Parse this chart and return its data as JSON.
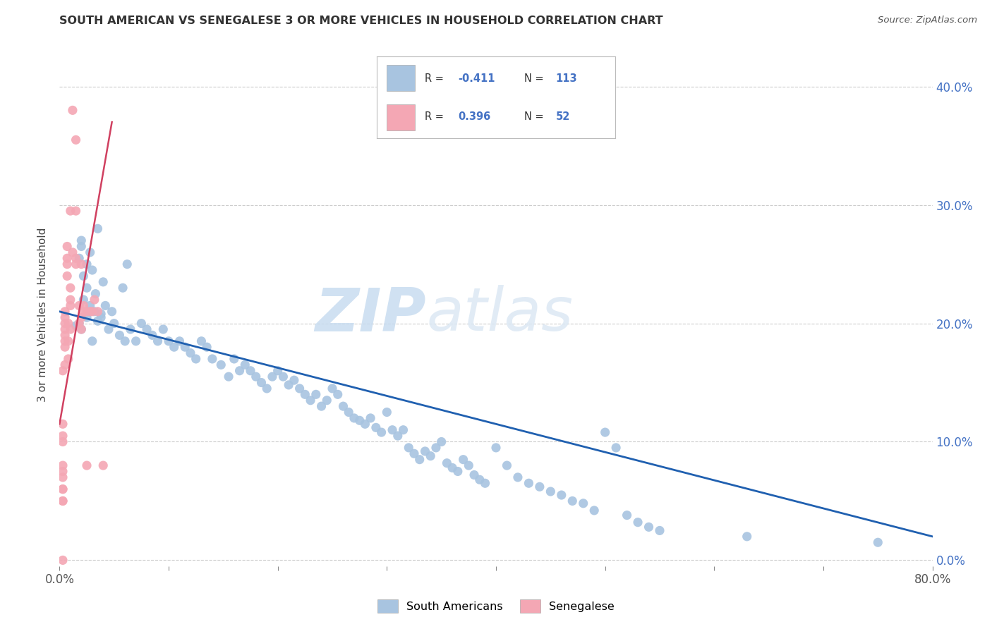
{
  "title": "SOUTH AMERICAN VS SENEGALESE 3 OR MORE VEHICLES IN HOUSEHOLD CORRELATION CHART",
  "source": "Source: ZipAtlas.com",
  "ylabel": "3 or more Vehicles in Household",
  "xlim": [
    0.0,
    0.8
  ],
  "ylim": [
    -0.005,
    0.42
  ],
  "watermark_zip": "ZIP",
  "watermark_atlas": "atlas",
  "legend_labels": [
    "South Americans",
    "Senegalese"
  ],
  "blue_color": "#a8c4e0",
  "pink_color": "#f4a7b4",
  "trendline_blue": "#2060b0",
  "trendline_pink": "#d04060",
  "blue_trendline_x": [
    0.0,
    0.8
  ],
  "blue_trendline_y": [
    0.21,
    0.02
  ],
  "pink_trendline_x": [
    0.0,
    0.048
  ],
  "pink_trendline_y": [
    0.115,
    0.37
  ],
  "sa_x": [
    0.022,
    0.018,
    0.02,
    0.025,
    0.03,
    0.028,
    0.032,
    0.015,
    0.035,
    0.038,
    0.02,
    0.025,
    0.022,
    0.018,
    0.04,
    0.033,
    0.028,
    0.02,
    0.025,
    0.03,
    0.042,
    0.038,
    0.035,
    0.045,
    0.05,
    0.055,
    0.06,
    0.048,
    0.065,
    0.07,
    0.062,
    0.058,
    0.075,
    0.08,
    0.085,
    0.09,
    0.095,
    0.1,
    0.105,
    0.11,
    0.115,
    0.12,
    0.125,
    0.13,
    0.135,
    0.14,
    0.148,
    0.155,
    0.16,
    0.165,
    0.17,
    0.175,
    0.18,
    0.185,
    0.19,
    0.195,
    0.2,
    0.205,
    0.21,
    0.215,
    0.22,
    0.225,
    0.23,
    0.235,
    0.24,
    0.245,
    0.25,
    0.255,
    0.26,
    0.265,
    0.27,
    0.275,
    0.28,
    0.285,
    0.29,
    0.295,
    0.3,
    0.305,
    0.31,
    0.315,
    0.32,
    0.325,
    0.33,
    0.335,
    0.34,
    0.345,
    0.35,
    0.355,
    0.36,
    0.365,
    0.37,
    0.375,
    0.38,
    0.385,
    0.39,
    0.4,
    0.41,
    0.42,
    0.43,
    0.44,
    0.45,
    0.46,
    0.47,
    0.48,
    0.49,
    0.5,
    0.51,
    0.52,
    0.53,
    0.54,
    0.55,
    0.63,
    0.75
  ],
  "sa_y": [
    0.22,
    0.2,
    0.195,
    0.205,
    0.185,
    0.215,
    0.21,
    0.198,
    0.202,
    0.208,
    0.265,
    0.25,
    0.24,
    0.255,
    0.235,
    0.225,
    0.26,
    0.27,
    0.23,
    0.245,
    0.215,
    0.205,
    0.28,
    0.195,
    0.2,
    0.19,
    0.185,
    0.21,
    0.195,
    0.185,
    0.25,
    0.23,
    0.2,
    0.195,
    0.19,
    0.185,
    0.195,
    0.185,
    0.18,
    0.185,
    0.18,
    0.175,
    0.17,
    0.185,
    0.18,
    0.17,
    0.165,
    0.155,
    0.17,
    0.16,
    0.165,
    0.16,
    0.155,
    0.15,
    0.145,
    0.155,
    0.16,
    0.155,
    0.148,
    0.152,
    0.145,
    0.14,
    0.135,
    0.14,
    0.13,
    0.135,
    0.145,
    0.14,
    0.13,
    0.125,
    0.12,
    0.118,
    0.115,
    0.12,
    0.112,
    0.108,
    0.125,
    0.11,
    0.105,
    0.11,
    0.095,
    0.09,
    0.085,
    0.092,
    0.088,
    0.095,
    0.1,
    0.082,
    0.078,
    0.075,
    0.085,
    0.08,
    0.072,
    0.068,
    0.065,
    0.095,
    0.08,
    0.07,
    0.065,
    0.062,
    0.058,
    0.055,
    0.05,
    0.048,
    0.042,
    0.108,
    0.095,
    0.038,
    0.032,
    0.028,
    0.025,
    0.02,
    0.015
  ],
  "sen_x": [
    0.003,
    0.003,
    0.003,
    0.003,
    0.003,
    0.003,
    0.003,
    0.003,
    0.003,
    0.003,
    0.003,
    0.003,
    0.005,
    0.005,
    0.005,
    0.005,
    0.005,
    0.005,
    0.005,
    0.005,
    0.007,
    0.007,
    0.007,
    0.007,
    0.008,
    0.008,
    0.008,
    0.01,
    0.01,
    0.01,
    0.01,
    0.01,
    0.012,
    0.012,
    0.015,
    0.015,
    0.015,
    0.015,
    0.018,
    0.018,
    0.02,
    0.02,
    0.02,
    0.022,
    0.022,
    0.025,
    0.025,
    0.028,
    0.03,
    0.032,
    0.035,
    0.04
  ],
  "sen_y": [
    0.0,
    0.05,
    0.06,
    0.07,
    0.075,
    0.08,
    0.1,
    0.105,
    0.115,
    0.06,
    0.16,
    0.05,
    0.165,
    0.18,
    0.185,
    0.19,
    0.195,
    0.2,
    0.205,
    0.21,
    0.25,
    0.24,
    0.265,
    0.255,
    0.17,
    0.185,
    0.2,
    0.195,
    0.215,
    0.22,
    0.23,
    0.295,
    0.26,
    0.38,
    0.355,
    0.25,
    0.255,
    0.295,
    0.2,
    0.215,
    0.195,
    0.205,
    0.25,
    0.21,
    0.215,
    0.08,
    0.21,
    0.21,
    0.21,
    0.22,
    0.21,
    0.08
  ]
}
